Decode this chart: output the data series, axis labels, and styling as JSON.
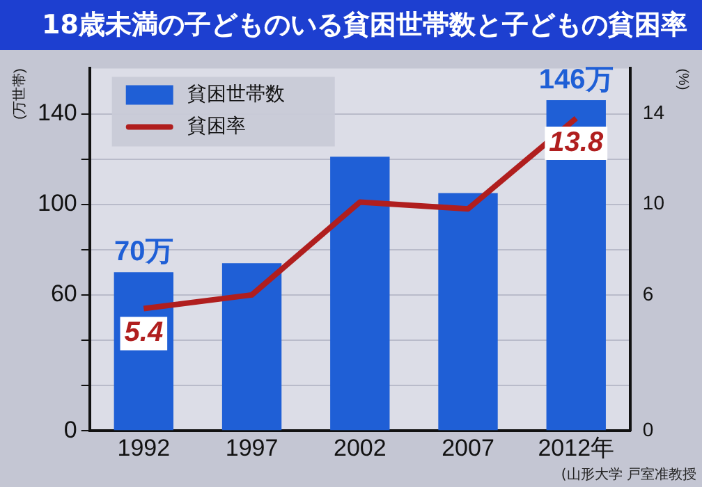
{
  "chart_data": {
    "type": "bar",
    "title": "18歳未満の子どものいる貧困世帯数と子どもの貧困率",
    "ylabel": "(万世帯)",
    "y2label": "(%)",
    "categories": [
      "1992",
      "1997",
      "2002",
      "2007",
      "2012年"
    ],
    "series": [
      {
        "name": "貧困世帯数",
        "color": "#1f5fd6",
        "values": [
          70,
          74,
          121,
          105,
          146
        ],
        "value_labels": [
          "70万",
          null,
          null,
          null,
          "146万"
        ]
      },
      {
        "name": "貧困率",
        "type": "line",
        "axis": "y2",
        "color": "#b01e1e",
        "values": [
          5.4,
          6.0,
          10.1,
          9.8,
          13.8
        ],
        "value_labels": [
          "5.4",
          null,
          null,
          null,
          "13.8"
        ]
      }
    ],
    "ylim": [
      0,
      160
    ],
    "yticks": [
      0,
      {
        "value": 20,
        "label": null
      },
      {
        "value": 40,
        "label": null
      },
      60,
      {
        "value": 80,
        "label": null
      },
      100,
      {
        "value": 120,
        "label": null
      },
      140
    ],
    "y2lim": [
      0,
      16
    ],
    "y2ticks": [
      0,
      6,
      10,
      14
    ],
    "grid": "y",
    "legend": "top left",
    "marker": "none",
    "line_style": "solid",
    "annotations": [
      "(山形大学 戸室准教授"
    ]
  }
}
